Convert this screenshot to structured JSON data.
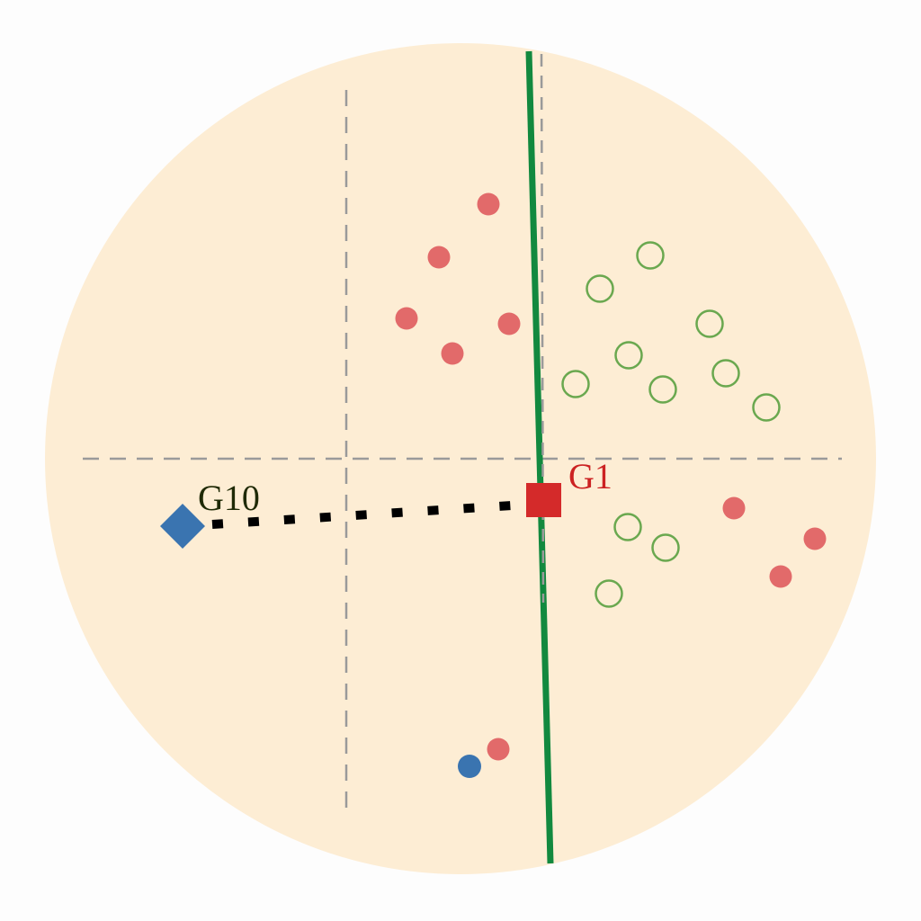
{
  "labels": {
    "g1": "G1",
    "g10": "G10"
  },
  "colors": {
    "background": "#fdfdfd",
    "disk": "#fdedd4",
    "divider_line": "#12893f",
    "dashed_lines": "#9a9a9a",
    "filled_red": "#e26a6a",
    "hollow_green": "#6aa84f",
    "blue": "#3a74b0",
    "g1_marker": "#d42a2a",
    "g1_label": "#cc2222",
    "g10_label": "#1f2a05",
    "path": "#000000"
  },
  "markers": {
    "g1": "red-square",
    "g10": "blue-diamond",
    "connector": "dotted-line"
  },
  "counts": {
    "red_dots": 9,
    "green_circles": 11,
    "blue_dots": 1
  }
}
